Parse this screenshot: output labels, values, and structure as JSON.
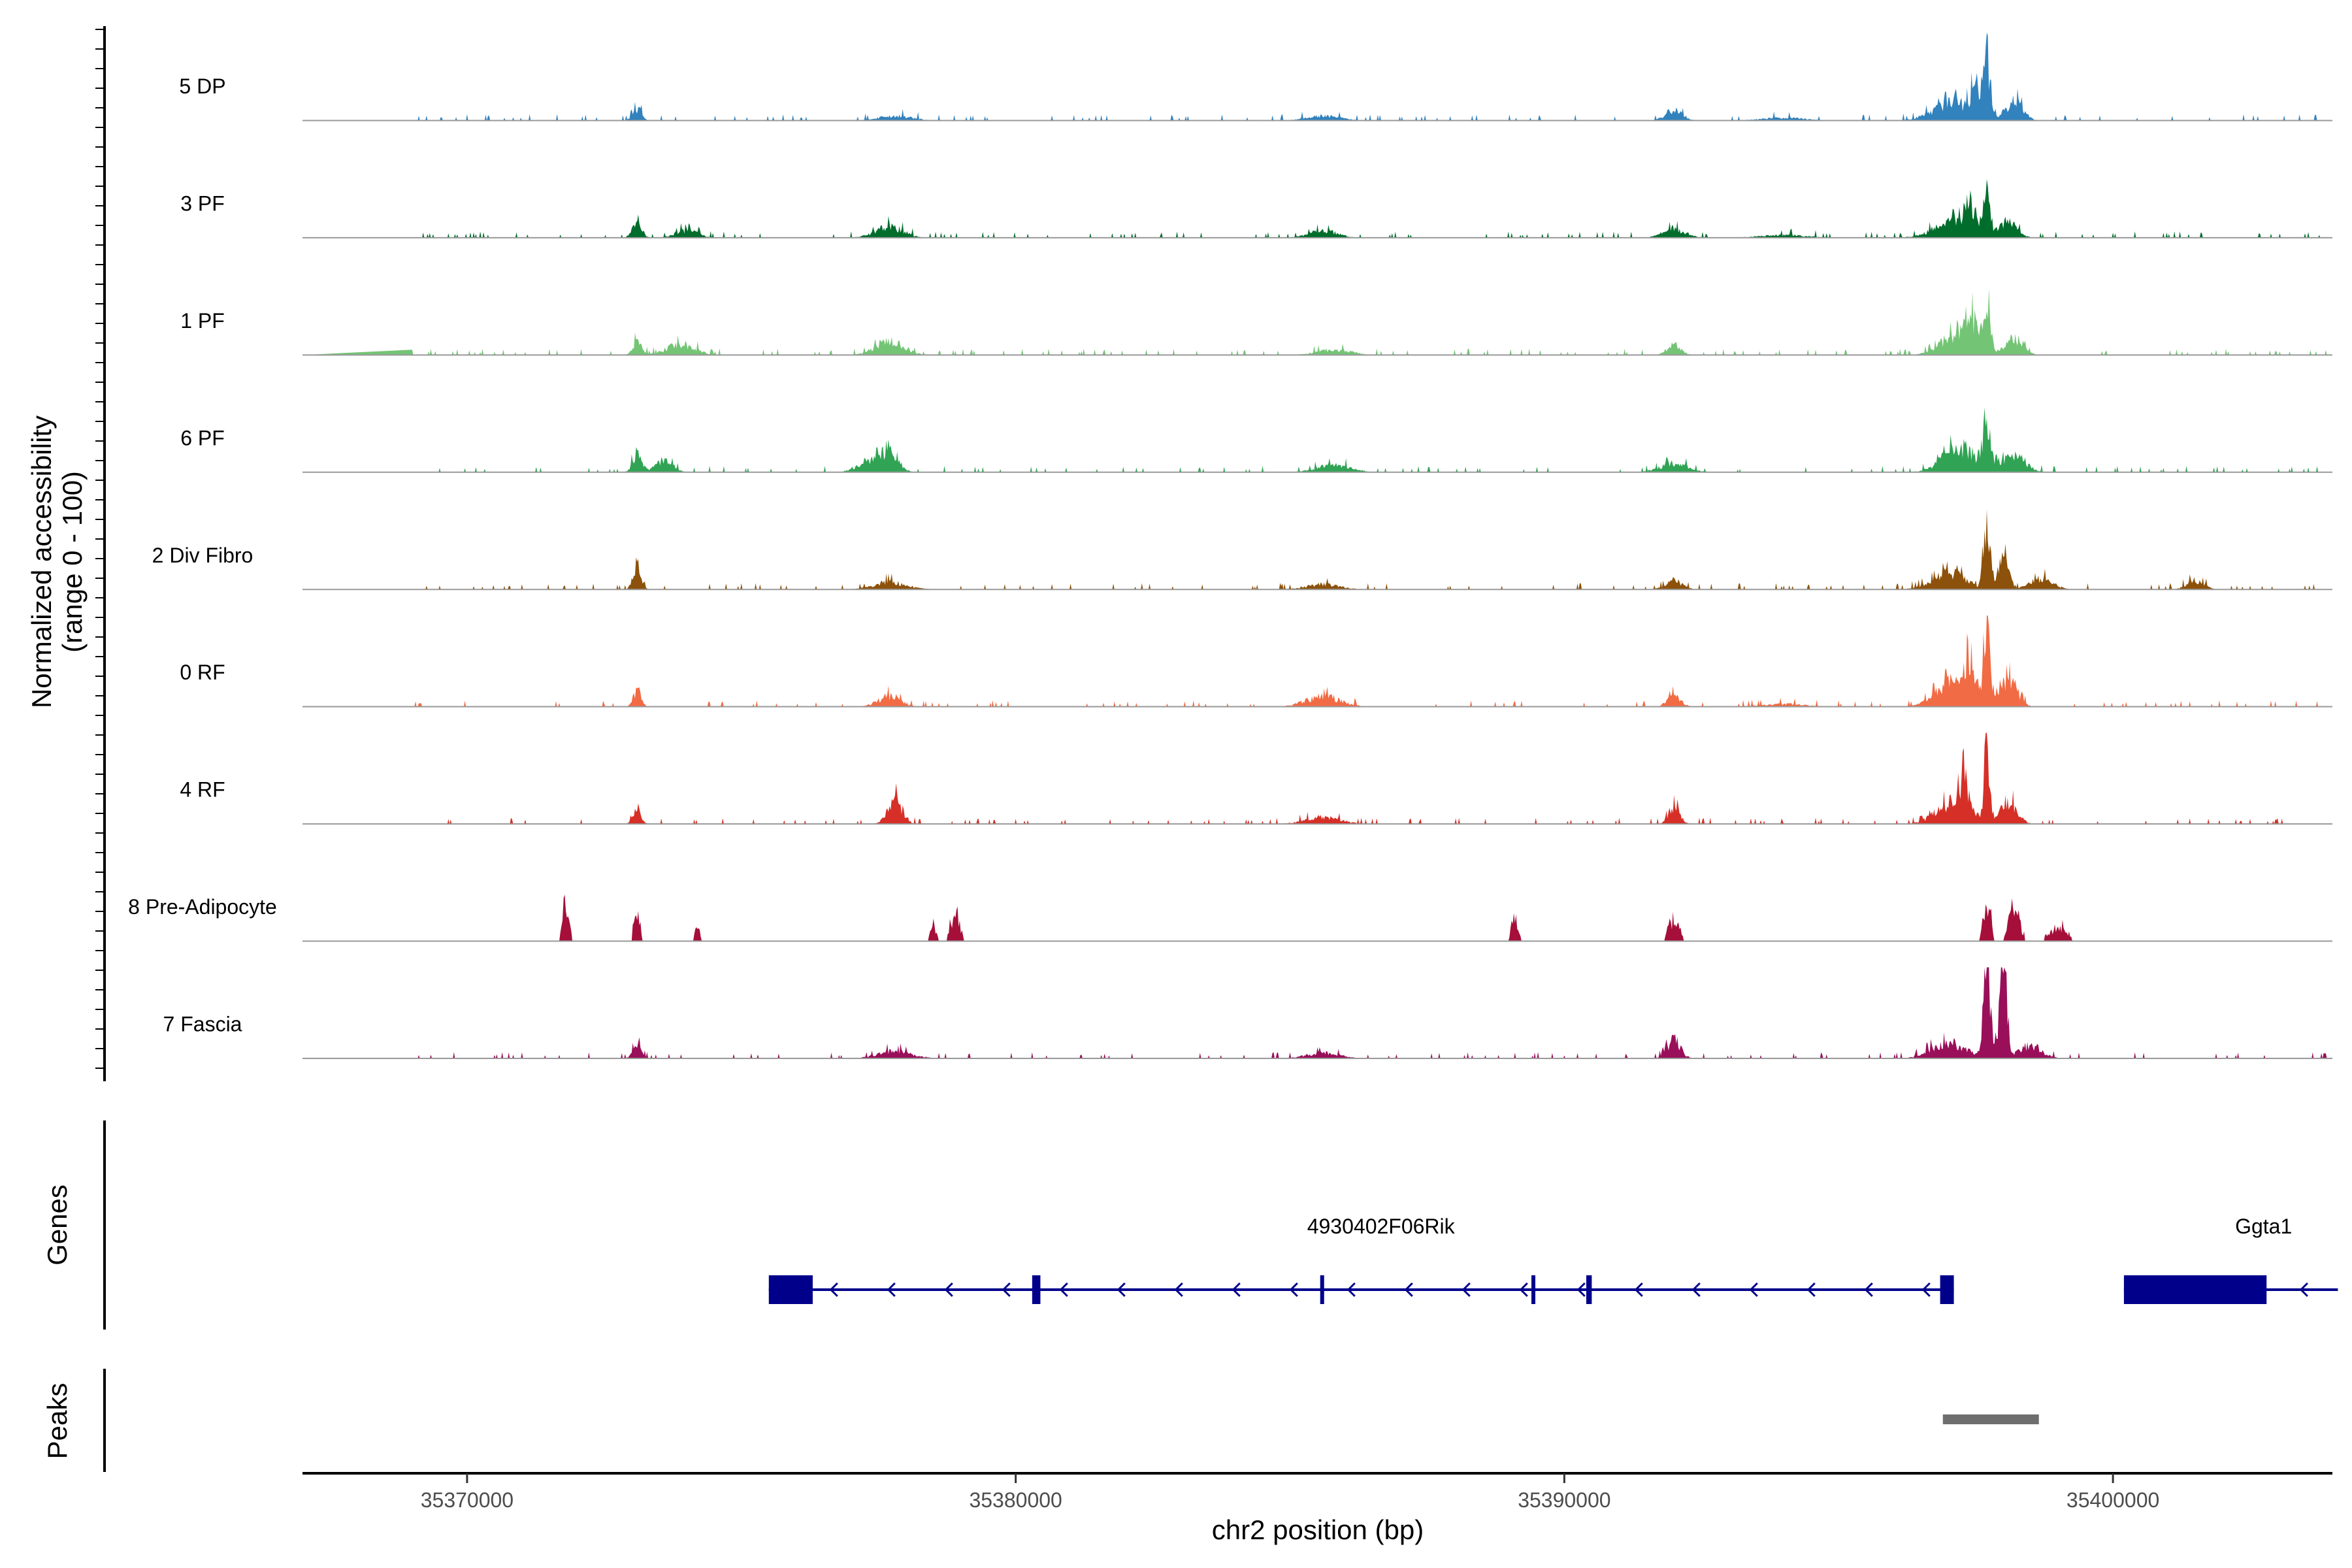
{
  "chart_data": {
    "type": "area",
    "title": "",
    "xlabel": "chr2 position (bp)",
    "ylabel": "Normalized accessibility",
    "ylabel_sub": "(range 0 - 100)",
    "xlim": [
      35367000,
      35404000
    ],
    "x_ticks": [
      35370000,
      35380000,
      35390000,
      35400000
    ],
    "x_tick_labels": [
      "35370000",
      "35380000",
      "35390000",
      "35400000"
    ],
    "ylim": [
      0,
      100
    ],
    "series": [
      {
        "name": "5 DP",
        "color": "#3182BD",
        "peaks": [
          [
            35373100,
            14,
            80
          ],
          [
            35377800,
            5,
            300
          ],
          [
            35385600,
            5,
            300
          ],
          [
            35392000,
            12,
            150
          ],
          [
            35397100,
            20,
            350
          ],
          [
            35397700,
            70,
            60
          ],
          [
            35397500,
            34,
            80
          ],
          [
            35398200,
            22,
            150
          ],
          [
            35394000,
            3,
            400
          ]
        ]
      },
      {
        "name": "3 PF",
        "color": "#006D2C",
        "peaks": [
          [
            35373100,
            22,
            80
          ],
          [
            35374000,
            8,
            200
          ],
          [
            35377700,
            12,
            250
          ],
          [
            35385600,
            8,
            250
          ],
          [
            35392000,
            10,
            200
          ],
          [
            35397100,
            18,
            350
          ],
          [
            35397700,
            50,
            60
          ],
          [
            35397400,
            30,
            90
          ],
          [
            35398100,
            20,
            150
          ],
          [
            35394000,
            3,
            400
          ]
        ]
      },
      {
        "name": "1 PF",
        "color": "#74C476",
        "peaks": [
          [
            35373100,
            16,
            80
          ],
          [
            35373900,
            12,
            250
          ],
          [
            35377700,
            16,
            250
          ],
          [
            35385800,
            6,
            300
          ],
          [
            35392000,
            12,
            120
          ],
          [
            35397200,
            25,
            300
          ],
          [
            35397700,
            65,
            60
          ],
          [
            35397400,
            30,
            90
          ],
          [
            35398200,
            20,
            150
          ]
        ]
      },
      {
        "name": "6 PF",
        "color": "#31A354",
        "peaks": [
          [
            35373100,
            22,
            80
          ],
          [
            35373600,
            14,
            150
          ],
          [
            35377700,
            25,
            150
          ],
          [
            35377300,
            12,
            200
          ],
          [
            35385800,
            8,
            300
          ],
          [
            35392000,
            10,
            250
          ],
          [
            35397200,
            28,
            300
          ],
          [
            35397700,
            45,
            70
          ],
          [
            35398200,
            20,
            200
          ]
        ]
      },
      {
        "name": "2 Div Fibro",
        "color": "#8C510A",
        "peaks": [
          [
            35373100,
            28,
            70
          ],
          [
            35377700,
            8,
            300
          ],
          [
            35385600,
            6,
            300
          ],
          [
            35392000,
            10,
            150
          ],
          [
            35397000,
            18,
            300
          ],
          [
            35397700,
            68,
            60
          ],
          [
            35398000,
            35,
            100
          ],
          [
            35398700,
            12,
            200
          ],
          [
            35401500,
            10,
            150
          ]
        ]
      },
      {
        "name": "0 RF",
        "color": "#F16B44",
        "peaks": [
          [
            35373100,
            18,
            70
          ],
          [
            35377700,
            12,
            200
          ],
          [
            35385600,
            12,
            300
          ],
          [
            35392000,
            12,
            120
          ],
          [
            35397100,
            30,
            300
          ],
          [
            35397700,
            100,
            50
          ],
          [
            35397400,
            40,
            80
          ],
          [
            35398100,
            30,
            150
          ],
          [
            35394000,
            3,
            400
          ]
        ]
      },
      {
        "name": "4 RF",
        "color": "#D62F27",
        "peaks": [
          [
            35373100,
            18,
            70
          ],
          [
            35377800,
            28,
            130
          ],
          [
            35385600,
            8,
            300
          ],
          [
            35392000,
            20,
            100
          ],
          [
            35397100,
            25,
            300
          ],
          [
            35397700,
            80,
            50
          ],
          [
            35397300,
            35,
            80
          ],
          [
            35398100,
            25,
            150
          ]
        ]
      },
      {
        "name": "8 Pre-Adipocyte",
        "color": "#A50F3A",
        "peaks": [
          [
            35371800,
            35,
            60
          ],
          [
            35373100,
            32,
            50
          ],
          [
            35374200,
            14,
            60
          ],
          [
            35378500,
            18,
            60
          ],
          [
            35378900,
            28,
            80
          ],
          [
            35389100,
            30,
            60
          ],
          [
            35392000,
            25,
            100
          ],
          [
            35397700,
            50,
            60
          ],
          [
            35398200,
            40,
            100
          ],
          [
            35399000,
            15,
            180
          ]
        ]
      },
      {
        "name": "7 Fascia",
        "color": "#990F5A",
        "peaks": [
          [
            35373100,
            16,
            80
          ],
          [
            35377800,
            8,
            300
          ],
          [
            35385600,
            6,
            300
          ],
          [
            35392000,
            20,
            120
          ],
          [
            35397000,
            18,
            300
          ],
          [
            35397700,
            130,
            60
          ],
          [
            35398000,
            90,
            70
          ],
          [
            35398500,
            14,
            200
          ]
        ]
      }
    ],
    "genes_track": {
      "title": "Genes",
      "color": "#00008B",
      "genes": [
        {
          "name": "4930402F06Rik",
          "strand": "-",
          "start": 35375500,
          "end": 35397100,
          "exons": [
            [
              35375500,
              35376300
            ],
            [
              35380300,
              35380450
            ],
            [
              35385550,
              35385620
            ],
            [
              35389400,
              35389460
            ],
            [
              35390400,
              35390500
            ],
            [
              35396850,
              35397100
            ]
          ]
        },
        {
          "name": "Ggta1",
          "strand": "-",
          "start": 35400200,
          "end": 35404100,
          "exons": [
            [
              35400200,
              35402800
            ]
          ]
        }
      ]
    },
    "peaks_track": {
      "title": "Peaks",
      "color": "#6E6E6E",
      "regions": [
        [
          35396900,
          35398650
        ]
      ]
    }
  }
}
